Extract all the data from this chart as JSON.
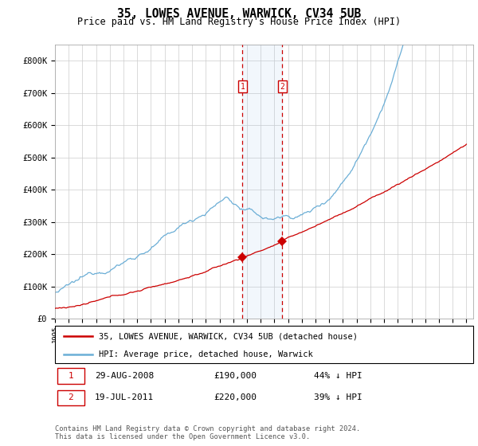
{
  "title": "35, LOWES AVENUE, WARWICK, CV34 5UB",
  "subtitle": "Price paid vs. HM Land Registry's House Price Index (HPI)",
  "ylim": [
    0,
    850000
  ],
  "yticks": [
    0,
    100000,
    200000,
    300000,
    400000,
    500000,
    600000,
    700000,
    800000
  ],
  "ytick_labels": [
    "£0",
    "£100K",
    "£200K",
    "£300K",
    "£400K",
    "£500K",
    "£600K",
    "£700K",
    "£800K"
  ],
  "hpi_color": "#6baed6",
  "price_color": "#cc0000",
  "purchase1_year": 2008.67,
  "purchase1_price": 190000,
  "purchase2_year": 2011.58,
  "purchase2_price": 220000,
  "purchase1_hpi": 339286,
  "purchase2_hpi": 360656,
  "purchase1_date": "29-AUG-2008",
  "purchase1_price_str": "£190,000",
  "purchase1_pct": "44% ↓ HPI",
  "purchase2_date": "19-JUL-2011",
  "purchase2_price_str": "£220,000",
  "purchase2_pct": "39% ↓ HPI",
  "legend_line1": "35, LOWES AVENUE, WARWICK, CV34 5UB (detached house)",
  "legend_line2": "HPI: Average price, detached house, Warwick",
  "footnote": "Contains HM Land Registry data © Crown copyright and database right 2024.\nThis data is licensed under the Open Government Licence v3.0.",
  "background_color": "#ffffff",
  "grid_color": "#cccccc",
  "start_year": 1995,
  "end_year": 2025,
  "n_months": 361
}
